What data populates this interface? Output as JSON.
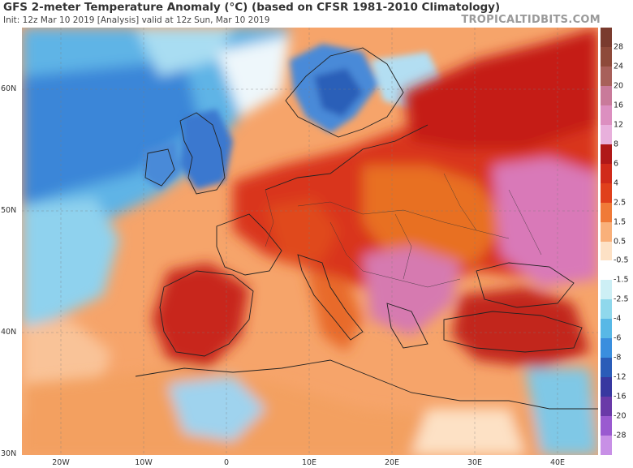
{
  "header": {
    "title": "GFS 2-meter Temperature Anomaly (°C) (based on CFSR 1981-2010 Climatology)",
    "subtitle": "Init: 12z Mar 10 2019   [Analysis]   valid at 12z Sun, Mar 10 2019",
    "brand": "TROPICALTIDBITS.COM"
  },
  "lat_labels": [
    "60N",
    "50N",
    "40N",
    "30N"
  ],
  "lon_labels": [
    "20W",
    "10W",
    "0",
    "10E",
    "20E",
    "30E",
    "40E"
  ],
  "colorbar": {
    "ticks": [
      "28",
      "24",
      "20",
      "16",
      "12",
      "8",
      "6",
      "4",
      "2.5",
      "1.5",
      "0.5",
      "-0.5",
      "-1.5",
      "-2.5",
      "-4",
      "-6",
      "-8",
      "-12",
      "-16",
      "-20",
      "-28"
    ],
    "colors": [
      "#7a3b2e",
      "#8e4a3a",
      "#a8605a",
      "#c97a9a",
      "#dc8fc0",
      "#e8b0dc",
      "#b01818",
      "#d02a1a",
      "#e0401c",
      "#f07a38",
      "#f9b07a",
      "#fde1c5",
      "#ffffff",
      "#cdeff5",
      "#8fd8ec",
      "#58b8e6",
      "#3a8ede",
      "#2a5cb8",
      "#3838a0",
      "#6a3aa8",
      "#9a5ad0",
      "#c890e6"
    ]
  },
  "map": {
    "description_region": "Europe, North Africa, Middle East",
    "palette": {
      "strong_warm": "#c8201c",
      "warm": "#e2561e",
      "mild_warm": "#f49a5a",
      "neutral": "#fce4c8",
      "cool": "#7fcbe8",
      "cold": "#3a7fd6",
      "very_warm_pink": "#d977b8",
      "land_border": "#222222"
    }
  }
}
